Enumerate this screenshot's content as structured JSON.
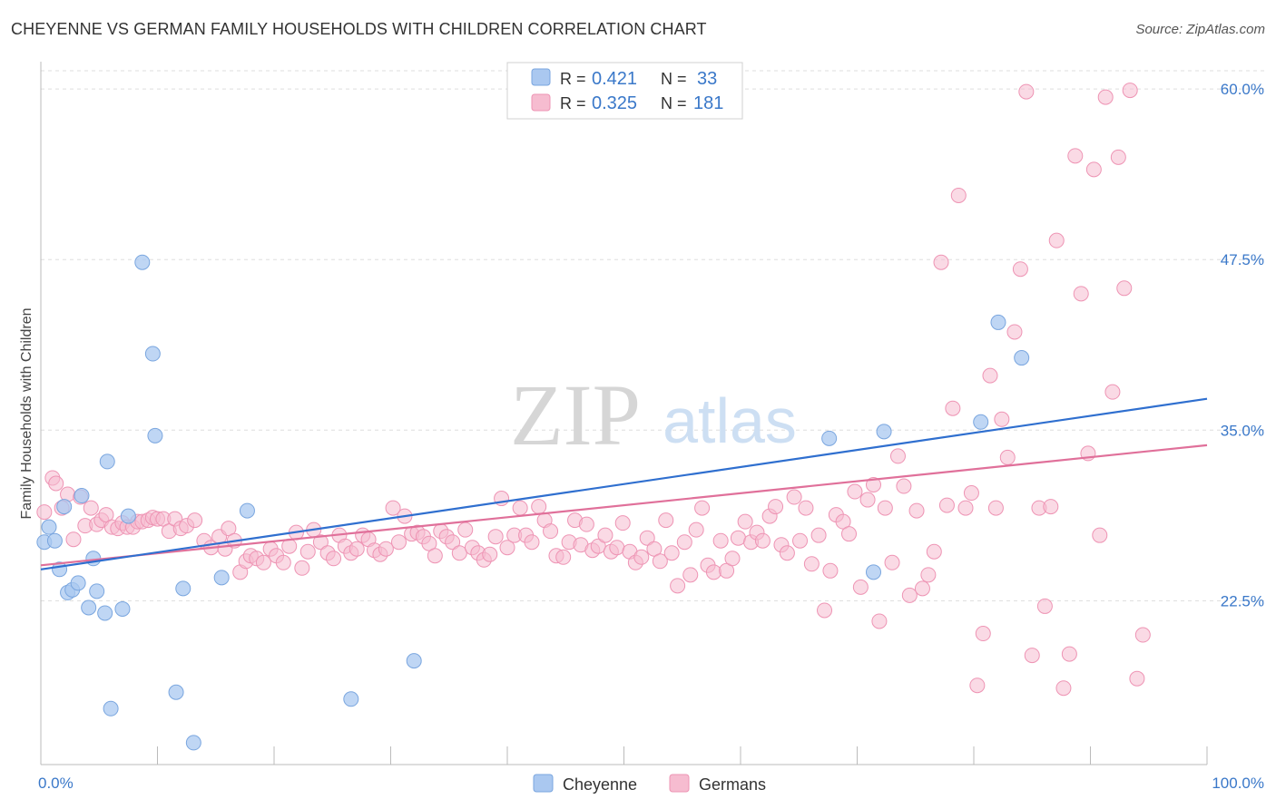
{
  "header": {
    "title": "CHEYENNE VS GERMAN FAMILY HOUSEHOLDS WITH CHILDREN CORRELATION CHART",
    "source": "Source: ZipAtlas.com"
  },
  "watermark": {
    "zip": "ZIP",
    "atlas": "atlas"
  },
  "colors": {
    "cheyenne_fill": "#aac8f0",
    "cheyenne_stroke": "#7aa6df",
    "cheyenne_line": "#2f6fcf",
    "germans_fill": "#f6bcd0",
    "germans_stroke": "#ee94b4",
    "germans_line": "#e0709a",
    "tick_label": "#3a78c9",
    "grid": "#dddddd"
  },
  "legend": {
    "rows": [
      {
        "r_label": "R =",
        "r_value": "0.421",
        "n_label": "N =",
        "n_value": "33"
      },
      {
        "r_label": "R =",
        "r_value": "0.325",
        "n_label": "N =",
        "n_value": "181"
      }
    ]
  },
  "bottom_legend": {
    "items": [
      "Cheyenne",
      "Germans"
    ]
  },
  "chart_data": {
    "type": "scatter",
    "title": "CHEYENNE VS GERMAN FAMILY HOUSEHOLDS WITH CHILDREN CORRELATION CHART",
    "xlabel": "",
    "ylabel": "Family Households with Children",
    "xlim": [
      0,
      100
    ],
    "ylim": [
      10.5,
      62
    ],
    "x_tick_labels": [
      "0.0%",
      "100.0%"
    ],
    "y_ticks": [
      22.5,
      35.0,
      47.5,
      60.0
    ],
    "y_tick_labels": [
      "22.5%",
      "35.0%",
      "47.5%",
      "60.0%"
    ],
    "grid": "horizontal dashed",
    "legend_position": "top-center",
    "series": [
      {
        "name": "Cheyenne",
        "r": 0.421,
        "n": 33,
        "trend": {
          "x": [
            0,
            100
          ],
          "y": [
            24.8,
            37.3
          ]
        },
        "points": [
          [
            0.3,
            26.8
          ],
          [
            0.7,
            27.9
          ],
          [
            1.2,
            26.9
          ],
          [
            1.6,
            24.8
          ],
          [
            2.0,
            29.4
          ],
          [
            2.3,
            23.1
          ],
          [
            2.7,
            23.3
          ],
          [
            3.2,
            23.8
          ],
          [
            3.5,
            30.2
          ],
          [
            4.1,
            22.0
          ],
          [
            4.5,
            25.6
          ],
          [
            4.8,
            23.2
          ],
          [
            5.5,
            21.6
          ],
          [
            5.7,
            32.7
          ],
          [
            6.0,
            14.6
          ],
          [
            7.0,
            21.9
          ],
          [
            7.5,
            28.7
          ],
          [
            8.7,
            47.3
          ],
          [
            9.6,
            40.6
          ],
          [
            9.8,
            34.6
          ],
          [
            11.6,
            15.8
          ],
          [
            12.2,
            23.4
          ],
          [
            13.1,
            12.1
          ],
          [
            15.5,
            24.2
          ],
          [
            17.7,
            29.1
          ],
          [
            26.6,
            15.3
          ],
          [
            32.0,
            18.1
          ],
          [
            80.6,
            35.6
          ],
          [
            82.1,
            42.9
          ],
          [
            84.1,
            40.3
          ],
          [
            67.6,
            34.4
          ],
          [
            72.3,
            34.9
          ],
          [
            71.4,
            24.6
          ]
        ]
      },
      {
        "name": "Germans",
        "r": 0.325,
        "n": 181,
        "trend": {
          "x": [
            0,
            100
          ],
          "y": [
            25.1,
            33.9
          ]
        },
        "points": [
          [
            0.3,
            29.0
          ],
          [
            1.0,
            31.5
          ],
          [
            1.3,
            31.1
          ],
          [
            1.8,
            29.3
          ],
          [
            2.3,
            30.3
          ],
          [
            2.8,
            27.0
          ],
          [
            3.4,
            30.1
          ],
          [
            3.8,
            28.0
          ],
          [
            4.3,
            29.3
          ],
          [
            4.8,
            28.1
          ],
          [
            5.2,
            28.4
          ],
          [
            5.6,
            28.8
          ],
          [
            6.1,
            27.9
          ],
          [
            6.6,
            27.8
          ],
          [
            7.0,
            28.2
          ],
          [
            7.4,
            27.9
          ],
          [
            7.9,
            27.9
          ],
          [
            8.3,
            28.3
          ],
          [
            8.7,
            28.3
          ],
          [
            9.2,
            28.4
          ],
          [
            9.6,
            28.6
          ],
          [
            10.0,
            28.5
          ],
          [
            10.5,
            28.5
          ],
          [
            11.0,
            27.6
          ],
          [
            11.5,
            28.5
          ],
          [
            12.0,
            27.8
          ],
          [
            12.5,
            28.0
          ],
          [
            13.2,
            28.4
          ],
          [
            14.0,
            26.9
          ],
          [
            14.6,
            26.4
          ],
          [
            15.3,
            27.2
          ],
          [
            15.8,
            26.3
          ],
          [
            16.1,
            27.8
          ],
          [
            16.6,
            26.9
          ],
          [
            17.1,
            24.6
          ],
          [
            17.6,
            25.4
          ],
          [
            18.0,
            25.8
          ],
          [
            18.5,
            25.6
          ],
          [
            19.1,
            25.3
          ],
          [
            19.7,
            26.3
          ],
          [
            20.2,
            25.8
          ],
          [
            20.8,
            25.3
          ],
          [
            21.3,
            26.5
          ],
          [
            21.9,
            27.5
          ],
          [
            22.4,
            24.9
          ],
          [
            22.9,
            26.1
          ],
          [
            23.4,
            27.7
          ],
          [
            24.0,
            26.8
          ],
          [
            24.6,
            26.0
          ],
          [
            25.1,
            25.6
          ],
          [
            25.6,
            27.3
          ],
          [
            26.1,
            26.5
          ],
          [
            26.6,
            26.0
          ],
          [
            27.1,
            26.3
          ],
          [
            27.6,
            27.3
          ],
          [
            28.1,
            27.0
          ],
          [
            28.6,
            26.2
          ],
          [
            29.1,
            25.9
          ],
          [
            29.6,
            26.3
          ],
          [
            30.2,
            29.3
          ],
          [
            30.7,
            26.8
          ],
          [
            31.2,
            28.7
          ],
          [
            31.8,
            27.4
          ],
          [
            32.3,
            27.5
          ],
          [
            32.8,
            27.2
          ],
          [
            33.3,
            26.7
          ],
          [
            33.8,
            25.8
          ],
          [
            34.3,
            27.6
          ],
          [
            34.8,
            27.2
          ],
          [
            35.3,
            26.8
          ],
          [
            35.9,
            26.0
          ],
          [
            36.4,
            27.7
          ],
          [
            37.0,
            26.4
          ],
          [
            37.5,
            26.0
          ],
          [
            38.0,
            25.5
          ],
          [
            38.5,
            25.9
          ],
          [
            39.0,
            27.2
          ],
          [
            39.5,
            30.0
          ],
          [
            40.0,
            26.4
          ],
          [
            40.6,
            27.3
          ],
          [
            41.1,
            29.3
          ],
          [
            41.6,
            27.3
          ],
          [
            42.1,
            26.8
          ],
          [
            42.7,
            29.4
          ],
          [
            43.2,
            28.4
          ],
          [
            43.7,
            27.6
          ],
          [
            44.2,
            25.8
          ],
          [
            44.8,
            25.7
          ],
          [
            45.3,
            26.8
          ],
          [
            45.8,
            28.4
          ],
          [
            46.3,
            26.6
          ],
          [
            46.8,
            28.1
          ],
          [
            47.3,
            26.2
          ],
          [
            47.8,
            26.5
          ],
          [
            48.4,
            27.3
          ],
          [
            48.9,
            26.1
          ],
          [
            49.4,
            26.4
          ],
          [
            49.9,
            28.2
          ],
          [
            50.5,
            26.1
          ],
          [
            51.0,
            25.3
          ],
          [
            51.5,
            25.7
          ],
          [
            52.0,
            27.1
          ],
          [
            52.6,
            26.3
          ],
          [
            53.1,
            25.4
          ],
          [
            53.6,
            28.4
          ],
          [
            54.1,
            26.0
          ],
          [
            54.6,
            23.6
          ],
          [
            55.2,
            26.8
          ],
          [
            55.7,
            24.4
          ],
          [
            56.2,
            27.7
          ],
          [
            56.7,
            29.3
          ],
          [
            57.2,
            25.1
          ],
          [
            57.7,
            24.6
          ],
          [
            58.3,
            26.9
          ],
          [
            58.8,
            24.7
          ],
          [
            59.3,
            25.6
          ],
          [
            59.8,
            27.1
          ],
          [
            60.4,
            28.3
          ],
          [
            60.9,
            26.8
          ],
          [
            61.4,
            27.5
          ],
          [
            61.9,
            26.9
          ],
          [
            62.5,
            28.7
          ],
          [
            63.0,
            29.4
          ],
          [
            63.5,
            26.6
          ],
          [
            64.0,
            26.0
          ],
          [
            64.6,
            30.1
          ],
          [
            65.1,
            26.9
          ],
          [
            65.6,
            29.3
          ],
          [
            66.1,
            25.2
          ],
          [
            66.7,
            27.3
          ],
          [
            67.2,
            21.8
          ],
          [
            67.7,
            24.7
          ],
          [
            68.2,
            28.8
          ],
          [
            68.8,
            28.3
          ],
          [
            69.3,
            27.4
          ],
          [
            69.8,
            30.5
          ],
          [
            70.3,
            23.5
          ],
          [
            70.9,
            29.9
          ],
          [
            71.4,
            31.0
          ],
          [
            71.9,
            21.0
          ],
          [
            72.4,
            29.3
          ],
          [
            73.0,
            25.3
          ],
          [
            73.5,
            33.1
          ],
          [
            74.0,
            30.9
          ],
          [
            74.5,
            22.9
          ],
          [
            75.1,
            29.1
          ],
          [
            75.6,
            23.4
          ],
          [
            76.1,
            24.4
          ],
          [
            76.6,
            26.1
          ],
          [
            77.2,
            47.3
          ],
          [
            77.7,
            29.5
          ],
          [
            78.2,
            36.6
          ],
          [
            78.7,
            52.2
          ],
          [
            79.3,
            29.3
          ],
          [
            79.8,
            30.4
          ],
          [
            80.3,
            16.3
          ],
          [
            80.8,
            20.1
          ],
          [
            81.4,
            39.0
          ],
          [
            81.9,
            29.3
          ],
          [
            82.4,
            35.8
          ],
          [
            82.9,
            33.0
          ],
          [
            83.5,
            42.2
          ],
          [
            84.0,
            46.8
          ],
          [
            84.5,
            59.8
          ],
          [
            85.0,
            18.5
          ],
          [
            85.6,
            29.3
          ],
          [
            86.1,
            22.1
          ],
          [
            86.6,
            29.4
          ],
          [
            87.1,
            48.9
          ],
          [
            87.7,
            16.1
          ],
          [
            88.2,
            18.6
          ],
          [
            88.7,
            55.1
          ],
          [
            89.2,
            45.0
          ],
          [
            89.8,
            33.3
          ],
          [
            90.3,
            54.1
          ],
          [
            90.8,
            27.3
          ],
          [
            91.3,
            59.4
          ],
          [
            91.9,
            37.8
          ],
          [
            92.4,
            55.0
          ],
          [
            92.9,
            45.4
          ],
          [
            93.4,
            59.9
          ],
          [
            94.0,
            16.8
          ],
          [
            94.5,
            20.0
          ]
        ]
      }
    ]
  }
}
